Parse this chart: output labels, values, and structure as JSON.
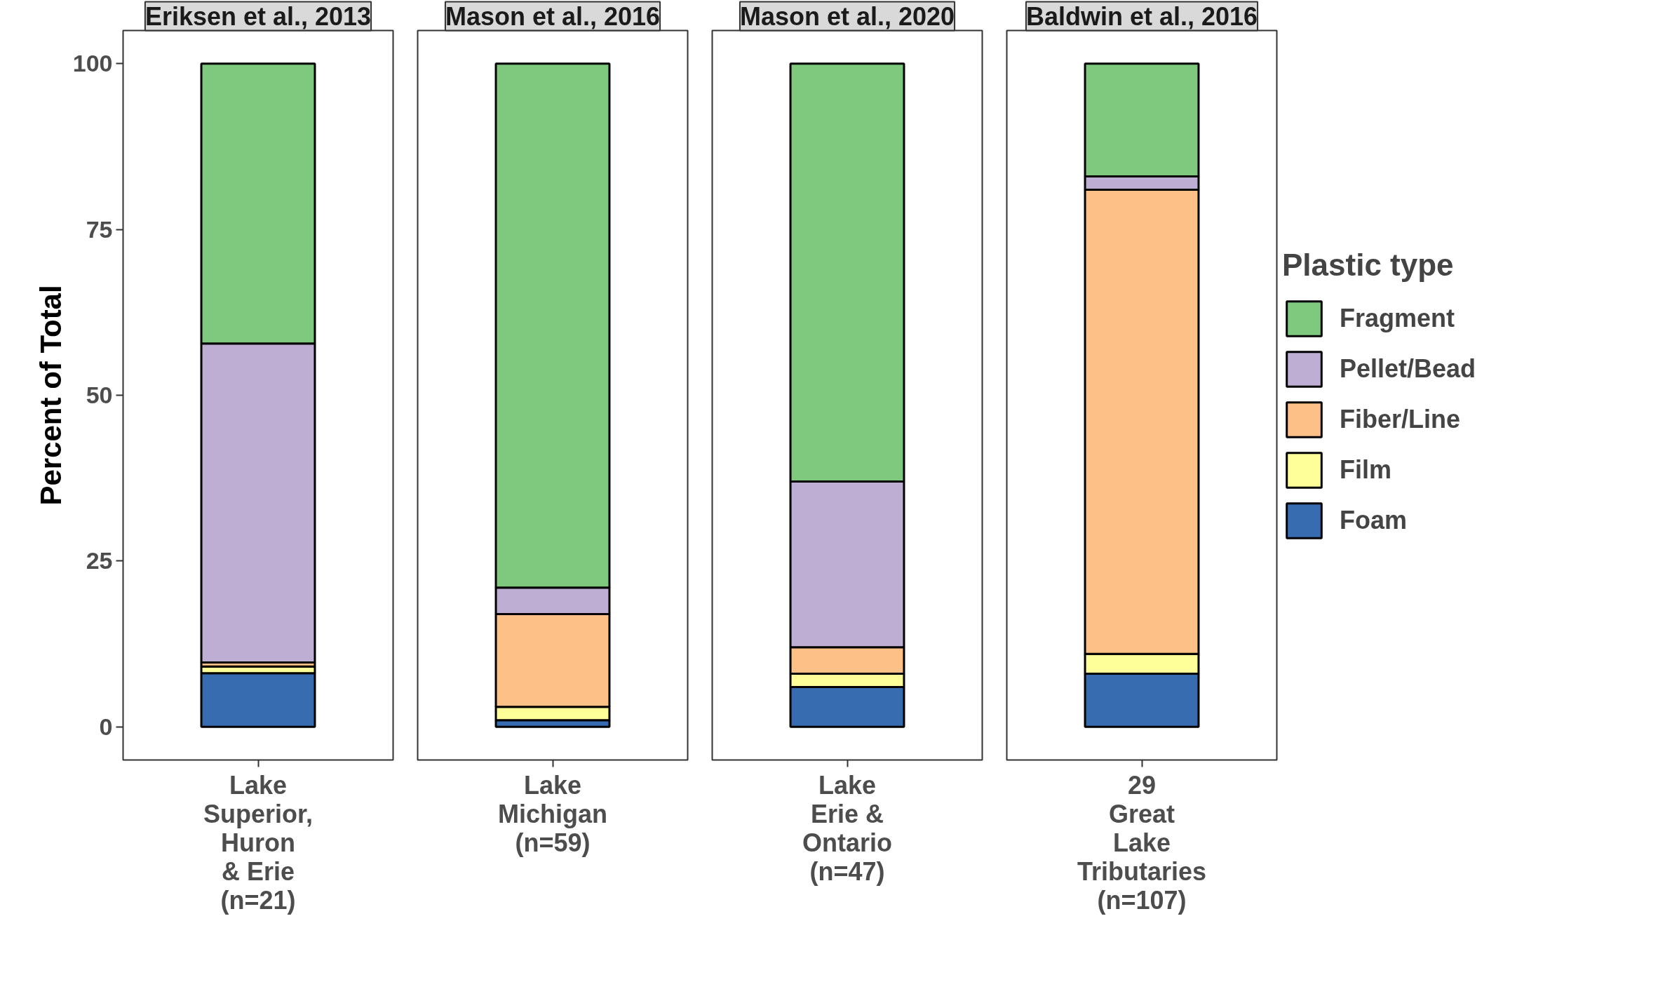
{
  "chart_data": [
    {
      "type": "bar",
      "title": "Eriksen et al., 2013",
      "ylabel": "Percent of Total",
      "categories": [
        "Lake\nSuperior,\nHuron\n& Erie\n(n=21)"
      ],
      "stacked": true,
      "ylim": [
        -5,
        105
      ],
      "yticks": [
        0,
        25,
        50,
        75,
        100
      ],
      "grid": false,
      "legend": false,
      "series": [
        {
          "color": "#386cb0",
          "values": [
            8.1
          ]
        },
        {
          "color": "#ffff99",
          "values": [
            1.0
          ]
        },
        {
          "color": "#fdc086",
          "values": [
            0.6
          ]
        },
        {
          "color": "#beaed4",
          "values": [
            48.1
          ]
        },
        {
          "color": "#7fc97f",
          "values": [
            42.2
          ]
        }
      ]
    },
    {
      "type": "bar",
      "title": "Mason et al., 2016",
      "categories": [
        "Lake\nMichigan\n(n=59)"
      ],
      "stacked": true,
      "ylim": [
        -5,
        105
      ],
      "tick_labels": "x",
      "grid": false,
      "legend": false,
      "series": [
        {
          "color": "#386cb0",
          "values": [
            1
          ]
        },
        {
          "color": "#ffff99",
          "values": [
            2
          ]
        },
        {
          "color": "#fdc086",
          "values": [
            14
          ]
        },
        {
          "color": "#beaed4",
          "values": [
            4
          ]
        },
        {
          "color": "#7fc97f",
          "values": [
            79
          ]
        }
      ]
    },
    {
      "type": "bar",
      "title": "Mason et al., 2020",
      "categories": [
        "Lake\nErie &\nOntario\n(n=47)"
      ],
      "stacked": true,
      "ylim": [
        -5,
        105
      ],
      "tick_labels": "x",
      "grid": false,
      "legend": false,
      "series": [
        {
          "color": "#386cb0",
          "values": [
            6
          ]
        },
        {
          "color": "#ffff99",
          "values": [
            2
          ]
        },
        {
          "color": "#fdc086",
          "values": [
            4
          ]
        },
        {
          "color": "#beaed4",
          "values": [
            25
          ]
        },
        {
          "color": "#7fc97f",
          "values": [
            63
          ]
        }
      ]
    },
    {
      "type": "bar",
      "title": "Baldwin et al., 2016",
      "categories": [
        "29\nGreat\nLake\nTributaries\n(n=107)"
      ],
      "stacked": true,
      "ylim": [
        -5,
        105
      ],
      "tick_labels": "x",
      "grid": false,
      "legend": "right",
      "legend_title": "Plastic type",
      "series": [
        {
          "name": "Foam",
          "color": "#386cb0",
          "values": [
            8
          ]
        },
        {
          "name": "Film",
          "color": "#ffff99",
          "values": [
            3
          ]
        },
        {
          "name": "Fiber/Line",
          "color": "#fdc086",
          "values": [
            70
          ]
        },
        {
          "name": "Pellet/Bead",
          "color": "#beaed4",
          "values": [
            2
          ]
        },
        {
          "name": "Fragment",
          "color": "#7fc97f",
          "values": [
            17
          ]
        }
      ]
    }
  ]
}
